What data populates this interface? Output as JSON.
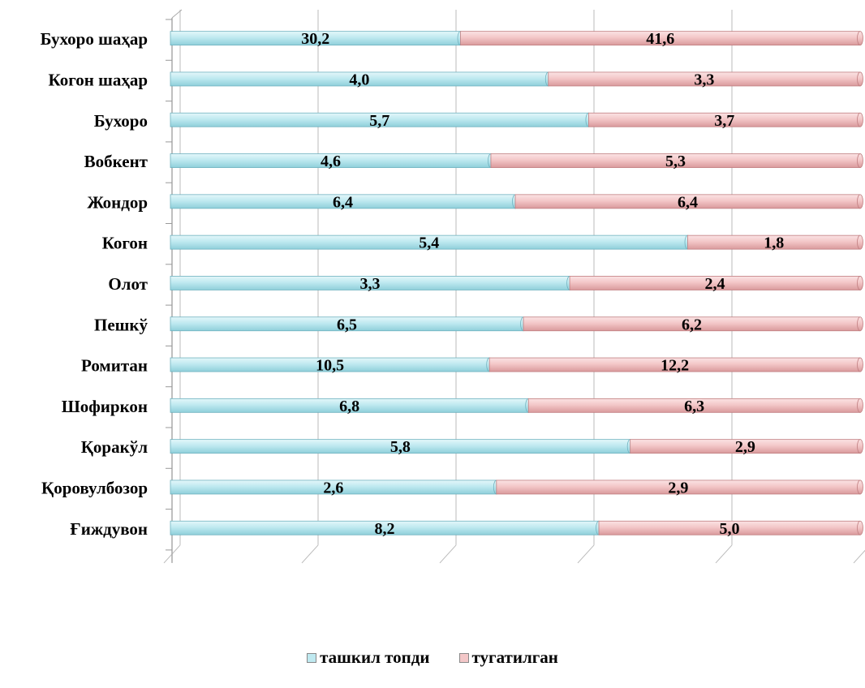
{
  "chart_data": {
    "type": "bar",
    "orientation": "horizontal",
    "stacked": "100%",
    "categories": [
      "Бухоро шаҳар",
      "Когон шаҳар",
      "Бухоро",
      "Вобкент",
      "Жондор",
      "Когон",
      "Олот",
      "Пешкў",
      "Ромитан",
      "Шофиркон",
      "Қоракўл",
      "Қоровулбозор",
      "Ғиждувон"
    ],
    "series": [
      {
        "name": "ташкил топди",
        "values": [
          "30,2",
          "4,0",
          "5,7",
          "4,6",
          "6,4",
          "5,4",
          "3,3",
          "6,5",
          "10,5",
          "6,8",
          "5,8",
          "2,6",
          "8,2"
        ],
        "color": "#bfe9f0",
        "legend_icon": "diagonal-box-icon"
      },
      {
        "name": "тугатилган",
        "values": [
          "41,6",
          "3,3",
          "3,7",
          "5,3",
          "6,4",
          "1,8",
          "2,4",
          "6,2",
          "12,2",
          "6,3",
          "2,9",
          "2,9",
          "5,0"
        ],
        "color": "#f3c7c8",
        "legend_icon": "diagonal-box-icon"
      }
    ],
    "xlabel": "",
    "ylabel": "",
    "xlim": [
      0,
      100
    ],
    "grid": true,
    "legend_position": "bottom"
  }
}
